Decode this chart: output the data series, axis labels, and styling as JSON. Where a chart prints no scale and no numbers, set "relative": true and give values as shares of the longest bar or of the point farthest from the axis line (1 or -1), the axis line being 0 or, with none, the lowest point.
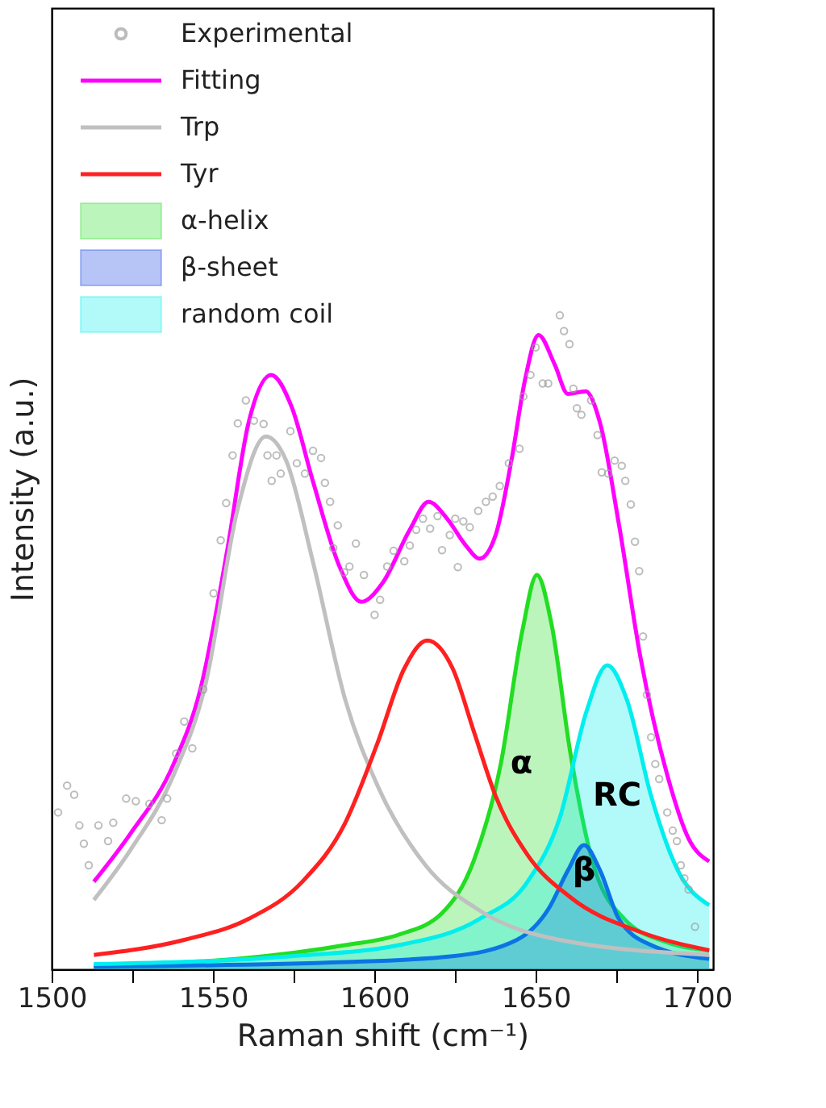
{
  "chart_data": {
    "type": "line",
    "xlabel": "Raman shift (cm⁻¹)",
    "ylabel": "Intensity (a.u.)",
    "relative": true,
    "xlim": [
      1500,
      1705
    ],
    "xticks": [
      1500,
      {
        "value": 1525,
        "label": null
      },
      1550,
      {
        "value": 1575,
        "label": null
      },
      1600,
      {
        "value": 1625,
        "label": null
      },
      1650,
      {
        "value": 1675,
        "label": null
      },
      1700
    ],
    "legend": "top left",
    "grid": false,
    "annotations": [
      {
        "text": "α",
        "x": 1639.2,
        "y": 0.314
      },
      {
        "text": "RC",
        "x": 1685.8,
        "y": 0.265
      },
      {
        "text": "β",
        "x": 1665.0,
        "y": 0.19
      }
    ],
    "series": [
      {
        "name": "Experimental",
        "type": "scatter",
        "marker": "circle",
        "color": "#a0a0a0",
        "x": [
          1502.0,
          1504.8,
          1507.0,
          1508.6,
          1510.0,
          1511.5,
          1514.5,
          1517.5,
          1519.1,
          1523.1,
          1526.1,
          1530.3,
          1534.1,
          1535.8,
          1538.6,
          1541.1,
          1543.6,
          1547.0,
          1550.2,
          1552.4,
          1554.1,
          1556.1,
          1557.7,
          1560.2,
          1562.7,
          1565.7,
          1566.9,
          1568.2,
          1569.7,
          1571.0,
          1574.0,
          1576.0,
          1578.5,
          1581.0,
          1583.5,
          1584.7,
          1586.3,
          1587.3,
          1588.7,
          1590.7,
          1592.3,
          1594.3,
          1596.8,
          1600.1,
          1601.8,
          1604.0,
          1606.0,
          1609.3,
          1611.0,
          1613.0,
          1615.1,
          1617.3,
          1619.6,
          1621.0,
          1623.4,
          1625.1,
          1625.9,
          1627.6,
          1629.6,
          1632.2,
          1634.6,
          1636.7,
          1638.9,
          1641.7,
          1645.0,
          1646.2,
          1648.4,
          1650.0,
          1652.2,
          1653.9,
          1657.5,
          1658.8,
          1660.5,
          1661.7,
          1662.8,
          1664.2,
          1667.2,
          1669.2,
          1670.5,
          1672.5,
          1674.5,
          1676.7,
          1677.8,
          1679.5,
          1680.8,
          1682.1,
          1683.3,
          1684.5,
          1685.8,
          1687.1,
          1688.3,
          1690.8,
          1692.5,
          1693.8,
          1695.0,
          1696.1,
          1697.4,
          1699.4
        ],
        "values": [
          0.24,
          0.281,
          0.267,
          0.22,
          0.192,
          0.159,
          0.22,
          0.196,
          0.224,
          0.261,
          0.257,
          0.253,
          0.228,
          0.261,
          0.33,
          0.379,
          0.338,
          0.428,
          0.575,
          0.656,
          0.713,
          0.786,
          0.835,
          0.87,
          0.839,
          0.834,
          0.786,
          0.747,
          0.786,
          0.758,
          0.823,
          0.774,
          0.758,
          0.793,
          0.782,
          0.744,
          0.715,
          0.644,
          0.679,
          0.607,
          0.616,
          0.651,
          0.603,
          0.542,
          0.565,
          0.616,
          0.64,
          0.624,
          0.648,
          0.672,
          0.689,
          0.674,
          0.693,
          0.641,
          0.664,
          0.689,
          0.615,
          0.685,
          0.676,
          0.701,
          0.715,
          0.723,
          0.739,
          0.774,
          0.796,
          0.876,
          0.909,
          0.951,
          0.896,
          0.896,
          1.0,
          0.976,
          0.956,
          0.888,
          0.858,
          0.848,
          0.87,
          0.817,
          0.76,
          0.758,
          0.778,
          0.77,
          0.747,
          0.711,
          0.654,
          0.609,
          0.509,
          0.42,
          0.355,
          0.314,
          0.291,
          0.24,
          0.212,
          0.196,
          0.159,
          0.139,
          0.122,
          0.065
        ]
      },
      {
        "name": "Fitting",
        "color": "#ff00ff",
        "x": [
          1513.1,
          1524.5,
          1537.8,
          1546.1,
          1554.4,
          1561.0,
          1568.0,
          1574.4,
          1581.0,
          1589.3,
          1596.0,
          1602.6,
          1611.0,
          1616.8,
          1622.6,
          1628.4,
          1632.6,
          1637.6,
          1642.5,
          1646.7,
          1650.9,
          1655.9,
          1660.0,
          1665.5,
          1670.0,
          1675.8,
          1682.5,
          1690.8,
          1697.4,
          1703.8
        ],
        "values": [
          0.134,
          0.208,
          0.314,
          0.428,
          0.64,
          0.835,
          0.909,
          0.86,
          0.746,
          0.615,
          0.562,
          0.591,
          0.672,
          0.715,
          0.689,
          0.648,
          0.628,
          0.664,
          0.778,
          0.901,
          0.97,
          0.925,
          0.88,
          0.884,
          0.835,
          0.681,
          0.477,
          0.297,
          0.2,
          0.165
        ]
      },
      {
        "name": "Trp",
        "color": "#c0c0c0",
        "x": [
          1513.1,
          1524.5,
          1537.8,
          1547.7,
          1557.7,
          1566.4,
          1572.7,
          1581.0,
          1591.0,
          1601.0,
          1615.9,
          1632.6,
          1657.5,
          1703.8
        ],
        "values": [
          0.106,
          0.183,
          0.297,
          0.436,
          0.705,
          0.815,
          0.778,
          0.623,
          0.412,
          0.281,
          0.159,
          0.09,
          0.045,
          0.022
        ]
      },
      {
        "name": "Tyr",
        "color": "#ff2020",
        "x": [
          1513.1,
          1541.1,
          1561.0,
          1577.7,
          1591.0,
          1601.0,
          1609.3,
          1616.4,
          1624.3,
          1630.9,
          1637.6,
          1647.5,
          1660.8,
          1682.5,
          1703.8
        ],
        "values": [
          0.022,
          0.045,
          0.077,
          0.134,
          0.224,
          0.346,
          0.46,
          0.503,
          0.46,
          0.363,
          0.265,
          0.175,
          0.11,
          0.057,
          0.029
        ]
      },
      {
        "name": "α-helix",
        "type": "area",
        "color": "#22dd22",
        "x": [
          1513.1,
          1557.7,
          1591.0,
          1607.6,
          1621.0,
          1630.9,
          1639.2,
          1645.9,
          1650.4,
          1655.0,
          1660.8,
          1667.5,
          1677.5,
          1690.8,
          1703.8
        ],
        "values": [
          0.006,
          0.016,
          0.037,
          0.053,
          0.086,
          0.167,
          0.314,
          0.518,
          0.603,
          0.526,
          0.33,
          0.167,
          0.077,
          0.041,
          0.029
        ]
      },
      {
        "name": "β-sheet",
        "type": "area",
        "color": "#1040e0",
        "x": [
          1513.1,
          1591.0,
          1624.3,
          1644.2,
          1654.2,
          1660.0,
          1665.0,
          1670.0,
          1675.8,
          1685.8,
          1703.8
        ],
        "values": [
          0.004,
          0.011,
          0.02,
          0.045,
          0.094,
          0.151,
          0.19,
          0.151,
          0.077,
          0.037,
          0.016
        ]
      },
      {
        "name": "random coil",
        "type": "area",
        "color": "#00eeee",
        "x": [
          1513.1,
          1574.4,
          1607.6,
          1632.6,
          1647.5,
          1657.5,
          1665.8,
          1672.2,
          1678.3,
          1685.8,
          1694.1,
          1703.8
        ],
        "values": [
          0.008,
          0.02,
          0.037,
          0.077,
          0.134,
          0.232,
          0.395,
          0.465,
          0.412,
          0.265,
          0.151,
          0.098
        ]
      }
    ]
  }
}
